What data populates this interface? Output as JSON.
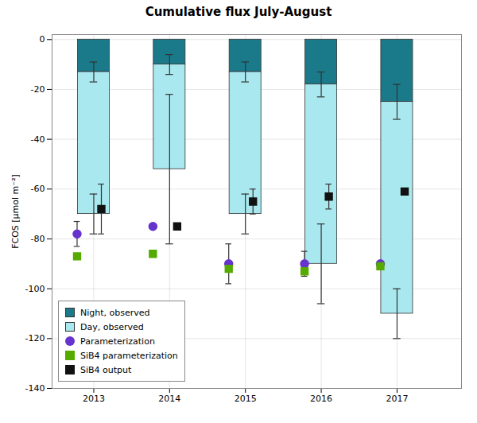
{
  "chart_data": {
    "type": "bar",
    "stacked": true,
    "title": "Cumulative flux July-August",
    "ylabel": "FCOS [μmol m⁻²]",
    "x": [
      2013,
      2014,
      2015,
      2016,
      2017
    ],
    "xlim": [
      2012.45,
      2017.85
    ],
    "xticks": [
      2013,
      2014,
      2015,
      2016,
      2017
    ],
    "ylim": [
      -140,
      2
    ],
    "yticks": [
      -140,
      -120,
      -100,
      -80,
      -60,
      -40,
      -20,
      0
    ],
    "grid": true,
    "legend": "lower left",
    "series": [
      {
        "name": "Night, observed",
        "type": "bar",
        "color": "#1a7a8a",
        "values": [
          -13,
          -10,
          -13,
          -18,
          -25
        ],
        "errors": [
          4,
          4,
          4,
          5,
          7
        ]
      },
      {
        "name": "Day, observed",
        "type": "bar",
        "color": "#a8e8ee",
        "values": [
          -57,
          -42,
          -57,
          -72,
          -85
        ],
        "errors": [
          8,
          30,
          8,
          16,
          10
        ]
      },
      {
        "name": "Parameterization",
        "type": "scatter",
        "marker": "circle",
        "color": "#6633cc",
        "values": [
          -78,
          -75,
          -90,
          -90,
          -90
        ],
        "errors": [
          5,
          0,
          8,
          5,
          0
        ]
      },
      {
        "name": "SiB4 parameterization",
        "type": "scatter",
        "marker": "square",
        "color": "#55aa00",
        "values": [
          -87,
          -86,
          -92,
          -93,
          -91
        ]
      },
      {
        "name": "SiB4 output",
        "type": "scatter",
        "marker": "square",
        "color": "#111111",
        "values": [
          -68,
          -75,
          -65,
          -63,
          -61
        ],
        "errors": [
          10,
          0,
          5,
          5,
          0
        ]
      }
    ]
  }
}
